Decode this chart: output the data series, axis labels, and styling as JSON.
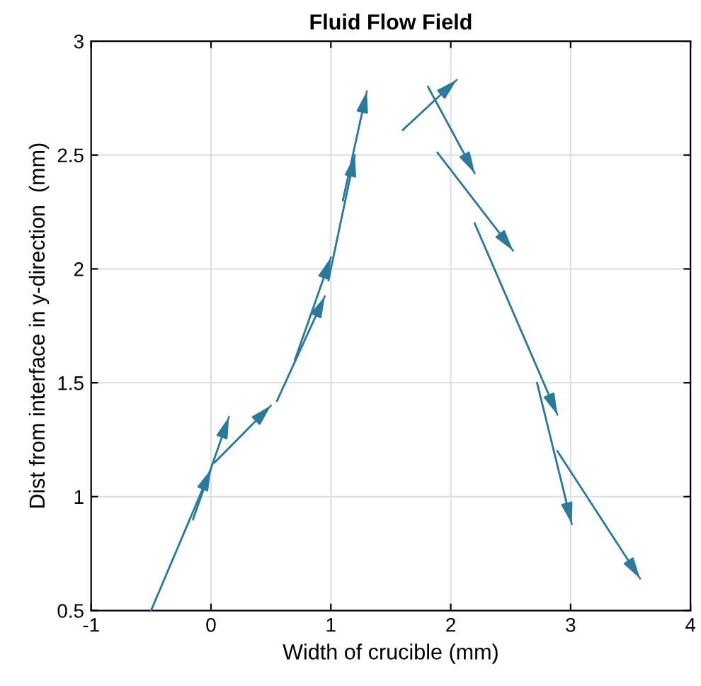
{
  "chart_data": {
    "type": "line",
    "title": "Fluid Flow Field",
    "xlabel": "Width of crucible (mm)",
    "ylabel": "Dist from interface in y-direction  (mm)",
    "xlim": [
      -1,
      4
    ],
    "ylim": [
      0.5,
      3
    ],
    "xticks": [
      -1,
      0,
      1,
      2,
      3,
      4
    ],
    "yticks": [
      0.5,
      1,
      1.5,
      2,
      2.5,
      3
    ],
    "grid": true,
    "marker": "none",
    "line_style": "solid",
    "series": [
      {
        "color": "#2a7a9b",
        "x": [
          -0.5,
          0.0
        ],
        "values": [
          0.5,
          1.12
        ]
      },
      {
        "color": "#2a7a9b",
        "x": [
          -0.15,
          0.15
        ],
        "values": [
          0.9,
          1.35
        ]
      },
      {
        "color": "#2a7a9b",
        "x": [
          0.03,
          0.5
        ],
        "values": [
          1.15,
          1.4
        ]
      },
      {
        "color": "#2a7a9b",
        "x": [
          0.55,
          0.95
        ],
        "values": [
          1.42,
          1.88
        ]
      },
      {
        "color": "#2a7a9b",
        "x": [
          0.7,
          1.0
        ],
        "values": [
          1.6,
          2.05
        ]
      },
      {
        "color": "#2a7a9b",
        "x": [
          0.98,
          1.2
        ],
        "values": [
          1.95,
          2.5
        ]
      },
      {
        "color": "#2a7a9b",
        "x": [
          1.1,
          1.3
        ],
        "values": [
          2.3,
          2.78
        ]
      },
      {
        "color": "#2a7a9b",
        "x": [
          1.6,
          2.05
        ],
        "values": [
          2.61,
          2.83
        ]
      },
      {
        "color": "#2a7a9b",
        "x": [
          1.81,
          2.2
        ],
        "values": [
          2.8,
          2.42
        ]
      },
      {
        "color": "#2a7a9b",
        "x": [
          1.89,
          2.52
        ],
        "values": [
          2.51,
          2.08
        ]
      },
      {
        "color": "#2a7a9b",
        "x": [
          2.2,
          2.89
        ],
        "values": [
          2.2,
          1.36
        ]
      },
      {
        "color": "#2a7a9b",
        "x": [
          2.72,
          3.01
        ],
        "values": [
          1.5,
          0.88
        ]
      },
      {
        "color": "#2a7a9b",
        "x": [
          2.89,
          3.58
        ],
        "values": [
          1.2,
          0.64
        ]
      }
    ]
  }
}
